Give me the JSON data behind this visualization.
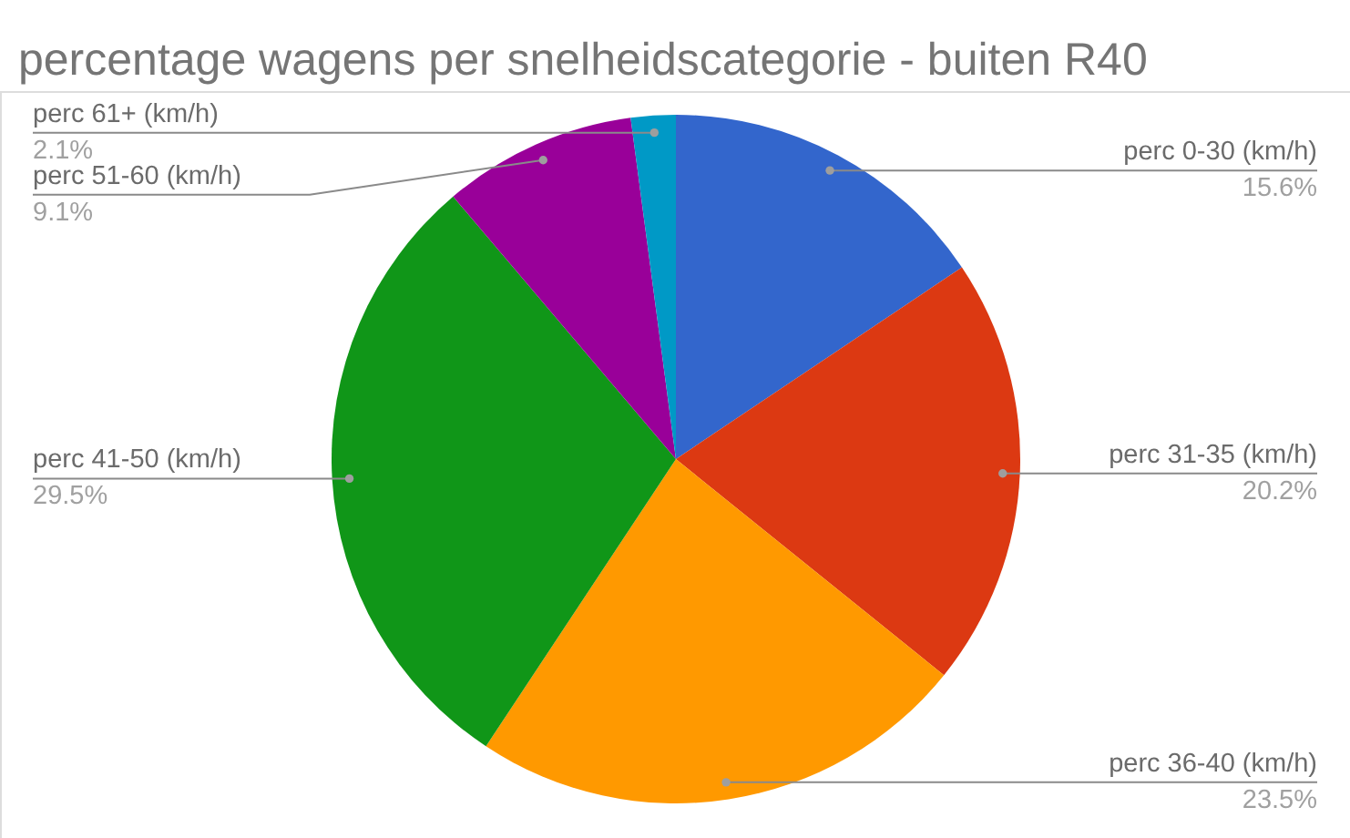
{
  "chart_data": {
    "type": "pie",
    "title": "percentage wagens per snelheidscategorie - buiten R40",
    "categories": [
      "perc 0-30 (km/h)",
      "perc 31-35 (km/h)",
      "perc 36-40 (km/h)",
      "perc 41-50 (km/h)",
      "perc 51-60 (km/h)",
      "perc 61+ (km/h)"
    ],
    "values": [
      15.6,
      20.2,
      23.5,
      29.5,
      9.1,
      2.1
    ],
    "colors": [
      "#3366cc",
      "#dc3912",
      "#ff9900",
      "#109618",
      "#990099",
      "#0099c6"
    ],
    "value_labels": [
      "15.6%",
      "20.2%",
      "23.5%",
      "29.5%",
      "9.1%",
      "2.1%"
    ]
  }
}
